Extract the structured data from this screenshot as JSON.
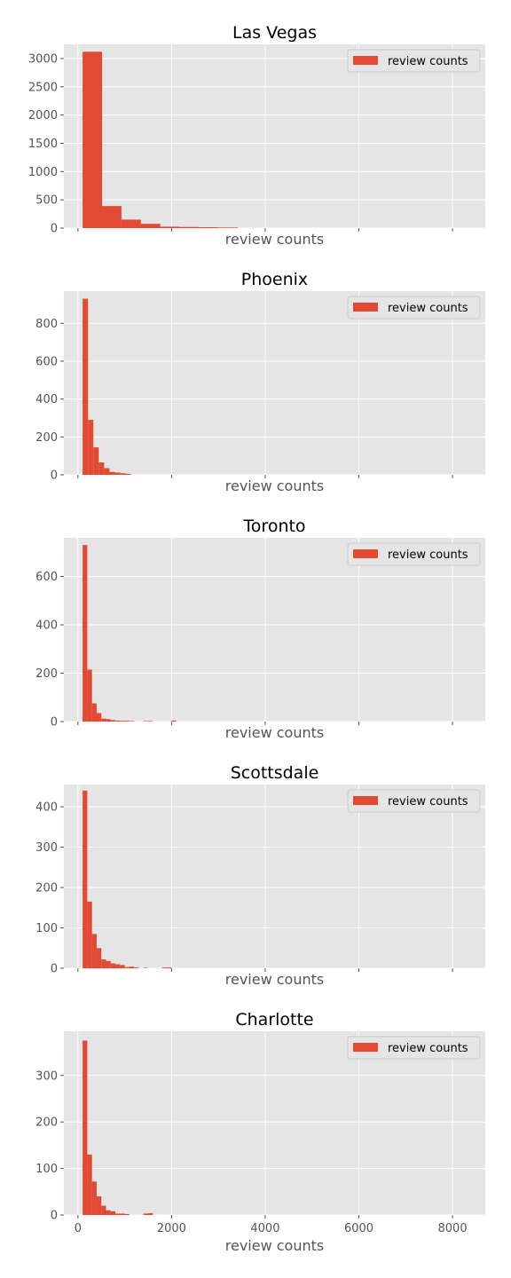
{
  "chart_data": [
    {
      "type": "bar",
      "title": "Las Vegas",
      "xlabel": "review counts",
      "ylabel": "",
      "xlim": [
        -300,
        8700
      ],
      "ylim": [
        0,
        3250
      ],
      "yticks": [
        "0",
        "500",
        "1000",
        "1500",
        "2000",
        "2500",
        "3000"
      ],
      "ytick_values": [
        0,
        500,
        1000,
        1500,
        2000,
        2500,
        3000
      ],
      "xticks": [
        "",
        "",
        "",
        "",
        ""
      ],
      "xtick_values": [
        0,
        2000,
        4000,
        6000,
        8000
      ],
      "legend": "top-right",
      "series": [
        {
          "name": "review counts",
          "bin_width": 415,
          "x": [
            100,
            515,
            930,
            1345,
            1760,
            2175,
            2590,
            3005
          ],
          "values": [
            3120,
            390,
            150,
            75,
            25,
            20,
            15,
            10
          ]
        }
      ]
    },
    {
      "type": "bar",
      "title": "Phoenix",
      "xlabel": "review counts",
      "ylabel": "",
      "xlim": [
        -300,
        8700
      ],
      "ylim": [
        0,
        970
      ],
      "yticks": [
        "0",
        "200",
        "400",
        "600",
        "800"
      ],
      "ytick_values": [
        0,
        200,
        400,
        600,
        800
      ],
      "xticks": [
        "",
        "",
        "",
        "",
        ""
      ],
      "xtick_values": [
        0,
        2000,
        4000,
        6000,
        8000
      ],
      "legend": "top-right",
      "series": [
        {
          "name": "review counts",
          "bin_width": 115,
          "x": [
            100,
            215,
            330,
            445,
            560,
            675,
            790,
            905,
            1020
          ],
          "values": [
            930,
            290,
            145,
            65,
            35,
            15,
            12,
            8,
            5
          ]
        }
      ]
    },
    {
      "type": "bar",
      "title": "Toronto",
      "xlabel": "review counts",
      "ylabel": "",
      "xlim": [
        -300,
        8700
      ],
      "ylim": [
        0,
        760
      ],
      "yticks": [
        "0",
        "200",
        "400",
        "600"
      ],
      "ytick_values": [
        0,
        200,
        400,
        600
      ],
      "xticks": [
        "",
        "",
        "",
        "",
        ""
      ],
      "xtick_values": [
        0,
        2000,
        4000,
        6000,
        8000
      ],
      "legend": "top-right",
      "series": [
        {
          "name": "review counts",
          "bin_width": 100,
          "x": [
            100,
            200,
            300,
            400,
            500,
            600,
            700,
            800,
            900,
            1000,
            1100,
            1400,
            1500,
            2000
          ],
          "values": [
            730,
            215,
            75,
            35,
            12,
            10,
            6,
            4,
            3,
            3,
            2,
            2,
            2,
            4
          ]
        }
      ]
    },
    {
      "type": "bar",
      "title": "Scottsdale",
      "xlabel": "review counts",
      "ylabel": "",
      "xlim": [
        -300,
        8700
      ],
      "ylim": [
        0,
        455
      ],
      "yticks": [
        "0",
        "100",
        "200",
        "300",
        "400"
      ],
      "ytick_values": [
        0,
        100,
        200,
        300,
        400
      ],
      "xticks": [
        "",
        "",
        "",
        "",
        ""
      ],
      "xtick_values": [
        0,
        2000,
        4000,
        6000,
        8000
      ],
      "legend": "top-right",
      "series": [
        {
          "name": "review counts",
          "bin_width": 100,
          "x": [
            100,
            200,
            300,
            400,
            500,
            600,
            700,
            800,
            900,
            1000,
            1100,
            1200,
            1400,
            1800,
            1900
          ],
          "values": [
            440,
            165,
            85,
            50,
            22,
            18,
            12,
            10,
            8,
            3,
            4,
            2,
            1,
            2,
            2
          ]
        }
      ]
    },
    {
      "type": "bar",
      "title": "Charlotte",
      "xlabel": "review counts",
      "ylabel": "",
      "xlim": [
        -300,
        8700
      ],
      "ylim": [
        0,
        395
      ],
      "yticks": [
        "0",
        "100",
        "200",
        "300"
      ],
      "ytick_values": [
        0,
        100,
        200,
        300
      ],
      "xticks": [
        "0",
        "2000",
        "4000",
        "6000",
        "8000"
      ],
      "xtick_values": [
        0,
        2000,
        4000,
        6000,
        8000
      ],
      "legend": "top-right",
      "series": [
        {
          "name": "review counts",
          "bin_width": 100,
          "x": [
            100,
            200,
            300,
            400,
            500,
            600,
            700,
            800,
            900,
            1000,
            1400,
            1500
          ],
          "values": [
            375,
            130,
            72,
            40,
            20,
            10,
            8,
            3,
            3,
            2,
            3,
            4
          ]
        }
      ]
    }
  ],
  "colors": {
    "bar": "#e24a33",
    "plot_background": "#e5e5e5",
    "grid": "#ffffff",
    "tick_text": "#555555",
    "title_text": "#000000",
    "legend_background": "#e5e5e5",
    "legend_border": "#cccccc"
  }
}
